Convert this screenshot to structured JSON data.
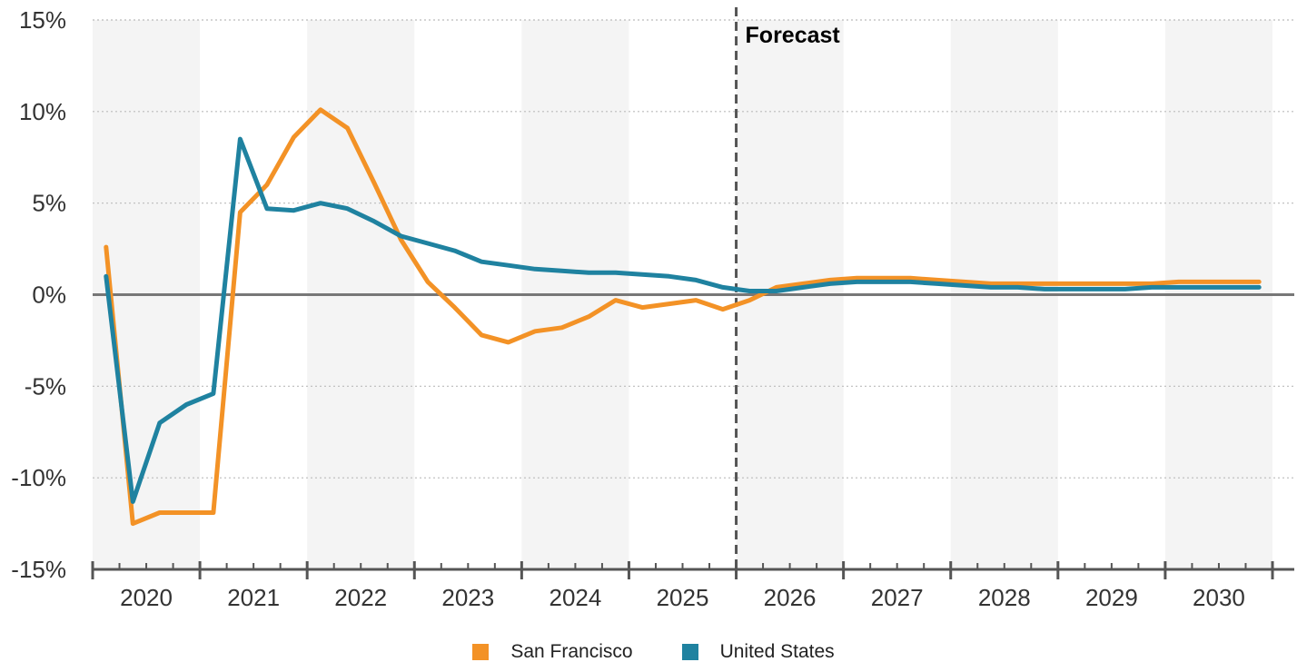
{
  "chart_data": {
    "type": "line",
    "annotation": "Forecast",
    "forecast_start_year": 2026,
    "x_range": [
      2020,
      2031
    ],
    "ylim": [
      -15,
      15
    ],
    "y_ticks": [
      "15%",
      "10%",
      "5%",
      "0%",
      "-5%",
      "-10%",
      "-15%"
    ],
    "y_tick_values": [
      15,
      10,
      5,
      0,
      -5,
      -10,
      -15
    ],
    "x_ticks": [
      "2020",
      "2021",
      "2022",
      "2023",
      "2024",
      "2025",
      "2026",
      "2027",
      "2028",
      "2029",
      "2030"
    ],
    "grid": true,
    "legend_position": "bottom",
    "series": [
      {
        "name": "San Francisco",
        "color": "#f39226",
        "x": [
          2020.125,
          2020.375,
          2020.625,
          2020.875,
          2021.125,
          2021.375,
          2021.625,
          2021.875,
          2022.125,
          2022.375,
          2022.625,
          2022.875,
          2023.125,
          2023.375,
          2023.625,
          2023.875,
          2024.125,
          2024.375,
          2024.625,
          2024.875,
          2025.125,
          2025.375,
          2025.625,
          2025.875,
          2026.125,
          2026.375,
          2026.625,
          2026.875,
          2027.125,
          2027.375,
          2027.625,
          2027.875,
          2028.125,
          2028.375,
          2028.625,
          2028.875,
          2029.125,
          2029.375,
          2029.625,
          2029.875,
          2030.125,
          2030.375,
          2030.625,
          2030.875
        ],
        "values": [
          2.6,
          -12.5,
          -11.9,
          -11.9,
          -11.9,
          4.5,
          6.0,
          8.6,
          10.1,
          9.1,
          6.1,
          3.0,
          0.7,
          -0.7,
          -2.2,
          -2.6,
          -2.0,
          -1.8,
          -1.2,
          -0.3,
          -0.7,
          -0.5,
          -0.3,
          -0.8,
          -0.3,
          0.4,
          0.6,
          0.8,
          0.9,
          0.9,
          0.9,
          0.8,
          0.7,
          0.6,
          0.6,
          0.6,
          0.6,
          0.6,
          0.6,
          0.6,
          0.7,
          0.7,
          0.7,
          0.7
        ]
      },
      {
        "name": "United States",
        "color": "#1f82a0",
        "x": [
          2020.125,
          2020.375,
          2020.625,
          2020.875,
          2021.125,
          2021.375,
          2021.625,
          2021.875,
          2022.125,
          2022.375,
          2022.625,
          2022.875,
          2023.125,
          2023.375,
          2023.625,
          2023.875,
          2024.125,
          2024.375,
          2024.625,
          2024.875,
          2025.125,
          2025.375,
          2025.625,
          2025.875,
          2026.125,
          2026.375,
          2026.625,
          2026.875,
          2027.125,
          2027.375,
          2027.625,
          2027.875,
          2028.125,
          2028.375,
          2028.625,
          2028.875,
          2029.125,
          2029.375,
          2029.625,
          2029.875,
          2030.125,
          2030.375,
          2030.625,
          2030.875
        ],
        "values": [
          1.0,
          -11.3,
          -7.0,
          -6.0,
          -5.4,
          8.5,
          4.7,
          4.6,
          5.0,
          4.7,
          4.0,
          3.2,
          2.8,
          2.4,
          1.8,
          1.6,
          1.4,
          1.3,
          1.2,
          1.2,
          1.1,
          1.0,
          0.8,
          0.4,
          0.2,
          0.2,
          0.4,
          0.6,
          0.7,
          0.7,
          0.7,
          0.6,
          0.5,
          0.4,
          0.4,
          0.3,
          0.3,
          0.3,
          0.3,
          0.4,
          0.4,
          0.4,
          0.4,
          0.4
        ]
      }
    ]
  }
}
